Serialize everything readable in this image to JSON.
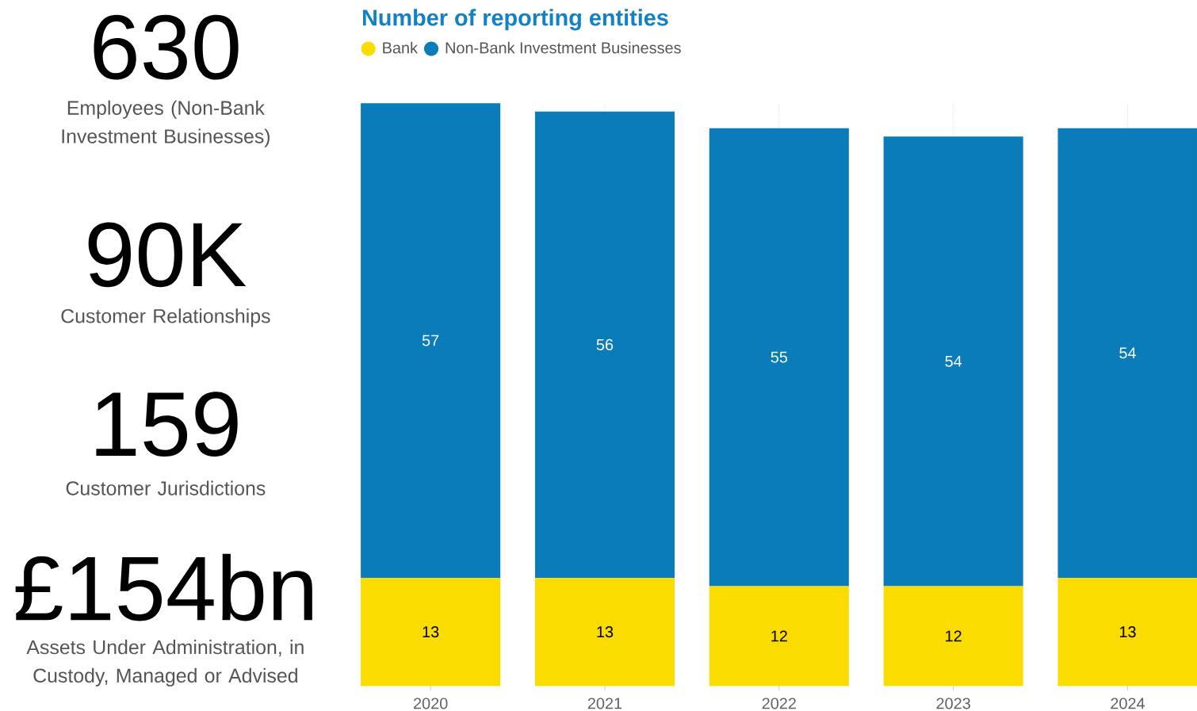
{
  "chart_data": [
    {
      "type": "other",
      "annotations": [
        "630",
        "Employees (Non-Bank Investment Businesses)",
        "90K",
        "Customer Relationships",
        "159",
        "Customer Jurisdictions",
        "£154bn",
        "Assets Under Administration, in Custody, Managed or Advised"
      ]
    },
    {
      "type": "bar",
      "title": "Number of reporting entities",
      "stacked": true,
      "data_labels": true,
      "grid": "x",
      "legend": "top left",
      "categories": [
        "2020",
        "2021",
        "2022",
        "2023",
        "2024"
      ],
      "series": [
        {
          "name": "Bank",
          "color": "#fadc00",
          "values": [
            13,
            13,
            12,
            12,
            13
          ]
        },
        {
          "name": "Non-Bank Investment Businesses",
          "color": "#0a7cb9",
          "values": [
            57,
            56,
            55,
            54,
            54
          ]
        }
      ]
    }
  ]
}
